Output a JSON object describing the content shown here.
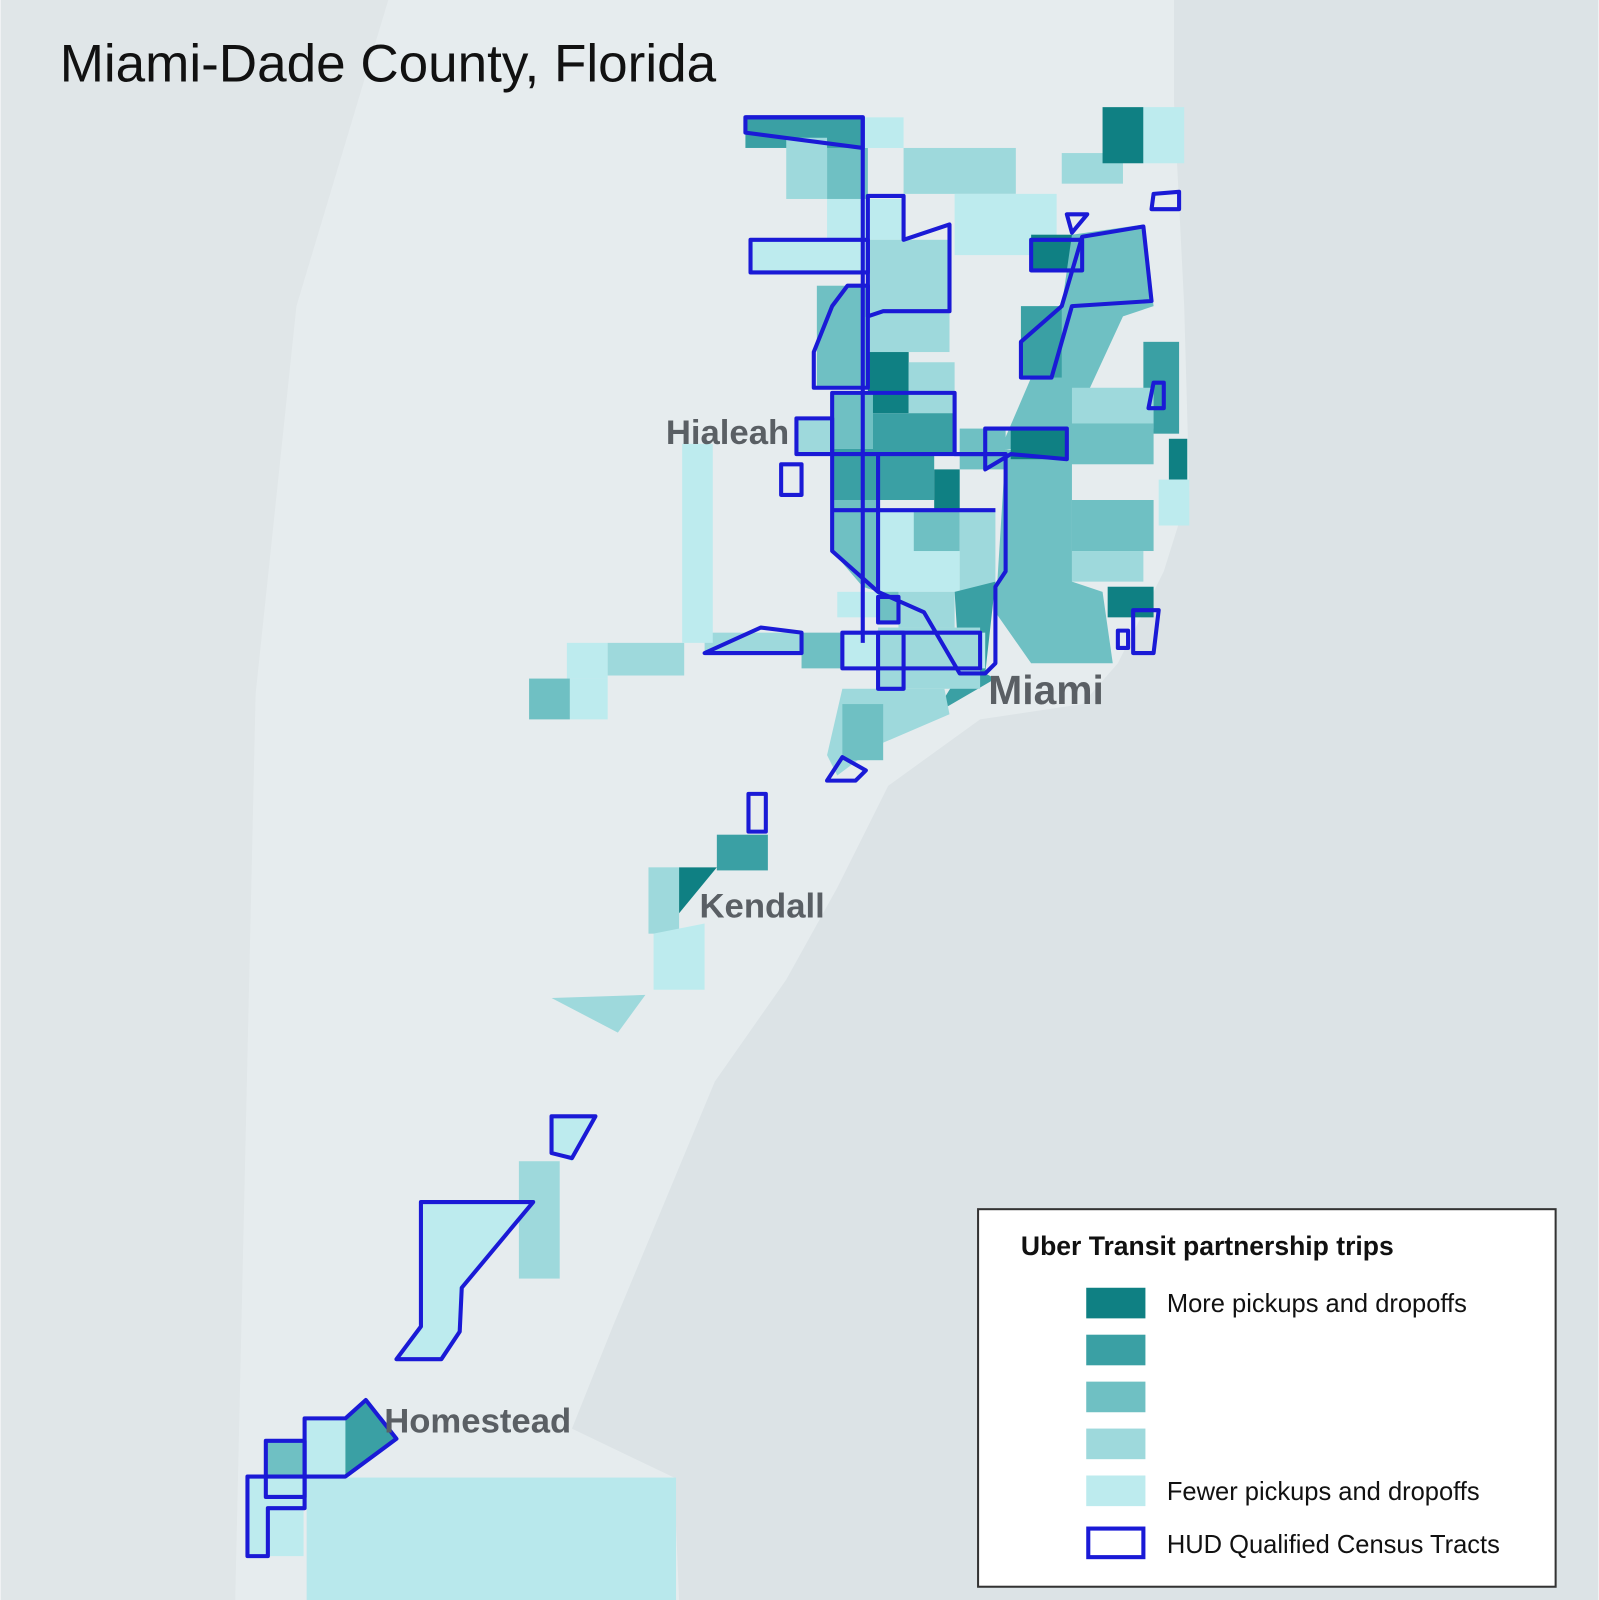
{
  "title": "Miami-Dade County, Florida",
  "places": [
    "Hialeah",
    "Miami",
    "Kendall",
    "Homestead"
  ],
  "legend": {
    "title": "Uber Transit partnership trips",
    "items": [
      {
        "color": "#0f8083",
        "label": "More pickups and dropoffs"
      },
      {
        "color": "#3aa0a4"
      },
      {
        "color": "#6fc0c3"
      },
      {
        "color": "#9ed9dc"
      },
      {
        "color": "#bdebee",
        "label": "Fewer pickups and dropoffs"
      }
    ],
    "hud": {
      "color": "#1a1ad6",
      "label": "HUD Qualified Census Tracts"
    }
  }
}
